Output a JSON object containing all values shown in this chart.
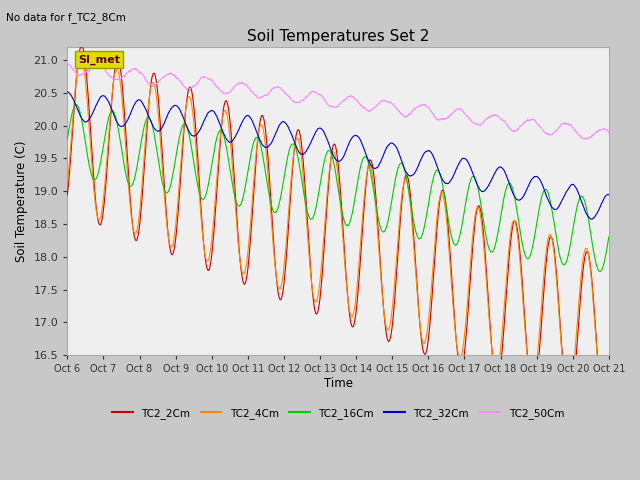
{
  "title": "Soil Temperatures Set 2",
  "subtitle": "No data for f_TC2_8Cm",
  "ylabel": "Soil Temperature (C)",
  "xlabel": "Time",
  "ylim": [
    16.5,
    21.2
  ],
  "xlim": [
    0,
    15
  ],
  "xtick_labels": [
    "Oct 6",
    "Oct 7",
    "Oct 8",
    "Oct 9",
    "Oct 10",
    "Oct 11",
    "Oct 12",
    "Oct 13",
    "Oct 14",
    "Oct 15",
    "Oct 16",
    "Oct 17",
    "Oct 18",
    "Oct 19",
    "Oct 20",
    "Oct 21"
  ],
  "ytick_values": [
    16.5,
    17.0,
    17.5,
    18.0,
    18.5,
    19.0,
    19.5,
    20.0,
    20.5,
    21.0
  ],
  "colors": {
    "TC2_2Cm": "#cc0000",
    "TC2_4Cm": "#ff8800",
    "TC2_16Cm": "#00cc00",
    "TC2_32Cm": "#0000cc",
    "TC2_50Cm": "#ff88ff"
  },
  "SI_met_box_color": "#dddd00",
  "SI_met_text_color": "#660000",
  "fig_bg_color": "#c8c8c8",
  "plot_bg_color": "#d8d8d8",
  "n_points": 3000
}
